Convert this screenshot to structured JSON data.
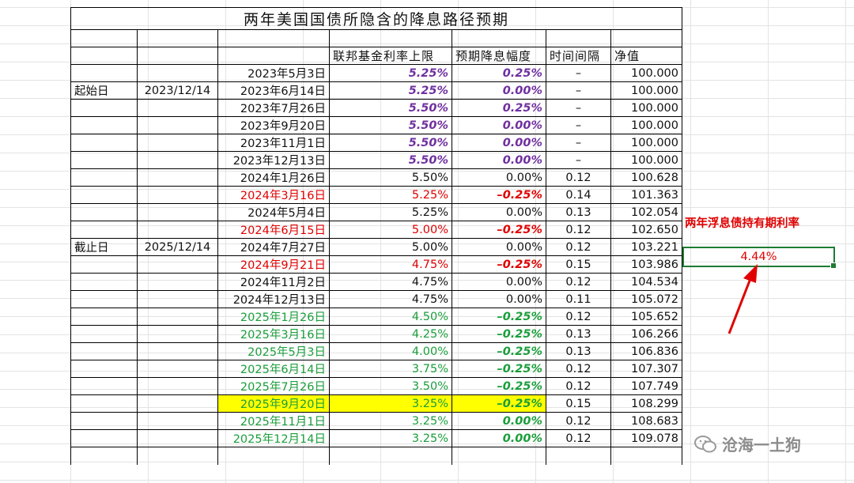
{
  "title": "两年美国国债所隐含的降息路径预期",
  "headers": {
    "rate_cap": "联邦基金利率上限",
    "expected_cut": "预期降息幅度",
    "interval": "时间间隔",
    "net_value": "净值"
  },
  "start": {
    "label": "起始日",
    "date": "2023/12/14"
  },
  "end": {
    "label": "截止日",
    "date": "2025/12/14"
  },
  "rows": [
    {
      "date": "2023年5月3日",
      "rate": "5.25%",
      "cut": "0.25%",
      "interval": "–",
      "nav": "100.000",
      "style": "purple"
    },
    {
      "date": "2023年6月14日",
      "rate": "5.25%",
      "cut": "0.00%",
      "interval": "–",
      "nav": "100.000",
      "style": "purple"
    },
    {
      "date": "2023年7月26日",
      "rate": "5.50%",
      "cut": "0.25%",
      "interval": "–",
      "nav": "100.000",
      "style": "purple"
    },
    {
      "date": "2023年9月20日",
      "rate": "5.50%",
      "cut": "0.00%",
      "interval": "–",
      "nav": "100.000",
      "style": "purple"
    },
    {
      "date": "2023年11月1日",
      "rate": "5.50%",
      "cut": "0.00%",
      "interval": "–",
      "nav": "100.000",
      "style": "purple"
    },
    {
      "date": "2023年12月13日",
      "rate": "5.50%",
      "cut": "0.00%",
      "interval": "–",
      "nav": "100.000",
      "style": "purple"
    },
    {
      "date": "2024年1月26日",
      "rate": "5.50%",
      "cut": "0.00%",
      "interval": "0.12",
      "nav": "100.628",
      "style": "black"
    },
    {
      "date": "2024年3月16日",
      "rate": "5.25%",
      "cut": "–0.25%",
      "interval": "0.14",
      "nav": "101.363",
      "style": "red"
    },
    {
      "date": "2024年5月4日",
      "rate": "5.25%",
      "cut": "0.00%",
      "interval": "0.13",
      "nav": "102.054",
      "style": "black"
    },
    {
      "date": "2024年6月15日",
      "rate": "5.00%",
      "cut": "–0.25%",
      "interval": "0.12",
      "nav": "102.650",
      "style": "red"
    },
    {
      "date": "2024年7月27日",
      "rate": "5.00%",
      "cut": "0.00%",
      "interval": "0.12",
      "nav": "103.221",
      "style": "black"
    },
    {
      "date": "2024年9月21日",
      "rate": "4.75%",
      "cut": "–0.25%",
      "interval": "0.15",
      "nav": "103.986",
      "style": "red"
    },
    {
      "date": "2024年11月2日",
      "rate": "4.75%",
      "cut": "0.00%",
      "interval": "0.12",
      "nav": "104.534",
      "style": "black"
    },
    {
      "date": "2024年12月13日",
      "rate": "4.75%",
      "cut": "0.00%",
      "interval": "0.11",
      "nav": "105.072",
      "style": "black"
    },
    {
      "date": "2025年1月26日",
      "rate": "4.50%",
      "cut": "–0.25%",
      "interval": "0.12",
      "nav": "105.652",
      "style": "green"
    },
    {
      "date": "2025年3月16日",
      "rate": "4.25%",
      "cut": "–0.25%",
      "interval": "0.13",
      "nav": "106.266",
      "style": "green"
    },
    {
      "date": "2025年5月3日",
      "rate": "4.00%",
      "cut": "–0.25%",
      "interval": "0.13",
      "nav": "106.836",
      "style": "green"
    },
    {
      "date": "2025年6月14日",
      "rate": "3.75%",
      "cut": "–0.25%",
      "interval": "0.12",
      "nav": "107.307",
      "style": "green"
    },
    {
      "date": "2025年7月26日",
      "rate": "3.50%",
      "cut": "–0.25%",
      "interval": "0.12",
      "nav": "107.749",
      "style": "green"
    },
    {
      "date": "2025年9月20日",
      "rate": "3.25%",
      "cut": "–0.25%",
      "interval": "0.15",
      "nav": "108.299",
      "style": "green",
      "highlight": true
    },
    {
      "date": "2025年11月1日",
      "rate": "3.25%",
      "cut": "0.00%",
      "interval": "0.12",
      "nav": "108.683",
      "style": "green"
    },
    {
      "date": "2025年12月14日",
      "rate": "3.25%",
      "cut": "0.00%",
      "interval": "0.12",
      "nav": "109.078",
      "style": "green"
    }
  ],
  "holding_label": "两年浮息债持有期利率",
  "holding_value": "4.44%",
  "watermark": "沧海一土狗",
  "colors": {
    "purple": "#7030a0",
    "red": "#e00000",
    "green": "#1a9e3b",
    "highlight": "#ffff00",
    "select": "#1e7b34"
  }
}
